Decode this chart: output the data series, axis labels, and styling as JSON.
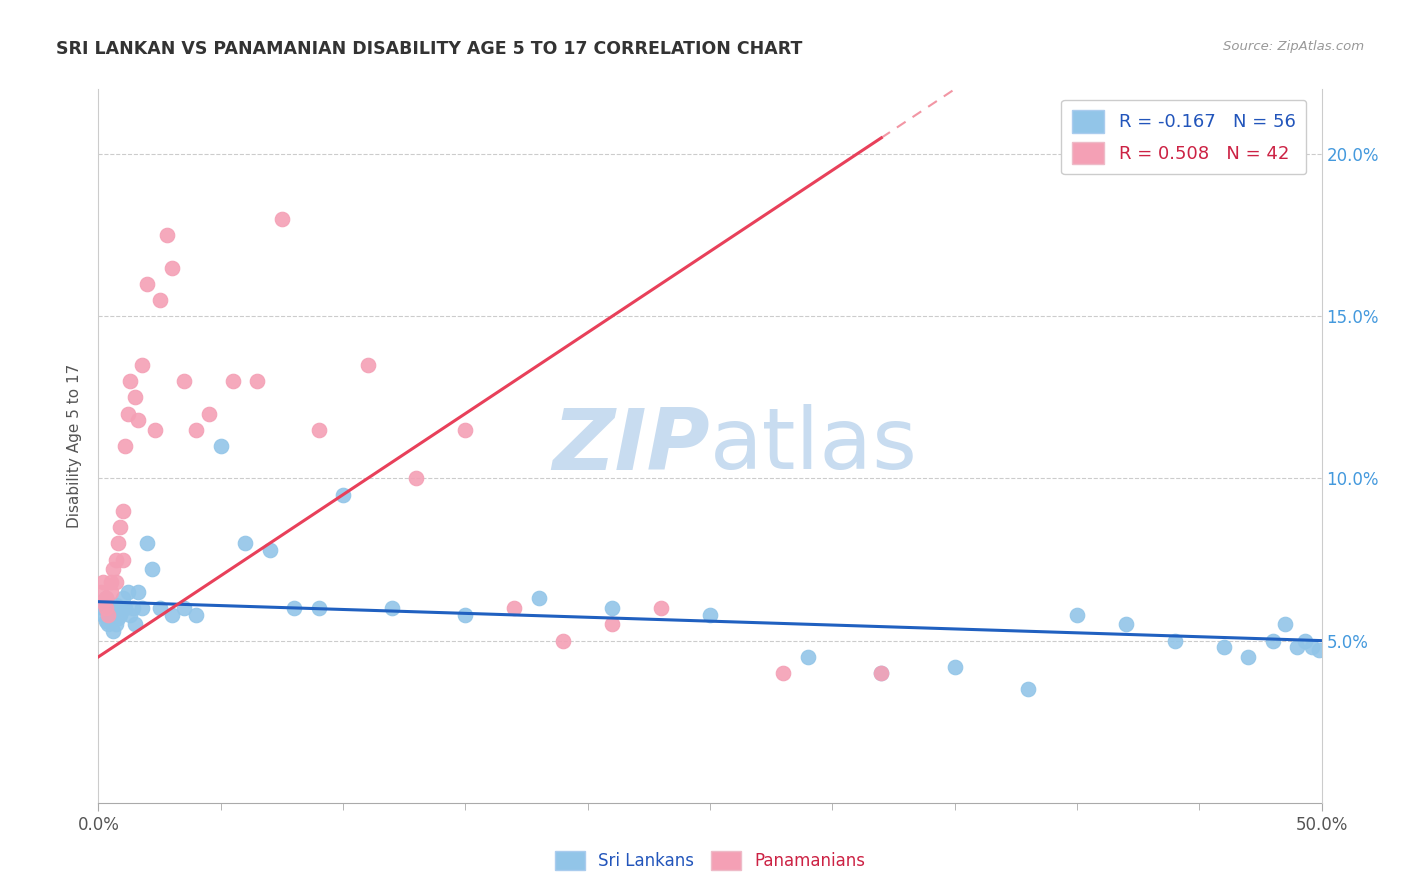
{
  "title": "SRI LANKAN VS PANAMANIAN DISABILITY AGE 5 TO 17 CORRELATION CHART",
  "source": "Source: ZipAtlas.com",
  "ylabel": "Disability Age 5 to 17",
  "xlim": [
    0.0,
    0.5
  ],
  "ylim": [
    0.0,
    0.22
  ],
  "yticks_right": [
    0.05,
    0.1,
    0.15,
    0.2
  ],
  "ytick_labels_right": [
    "5.0%",
    "10.0%",
    "15.0%",
    "20.0%"
  ],
  "sri_lankans_R": -0.167,
  "sri_lankans_N": 56,
  "panamanians_R": 0.508,
  "panamanians_N": 42,
  "sri_lankan_color": "#92C5E8",
  "panamanian_color": "#F4A0B5",
  "sri_lankan_line_color": "#2060C0",
  "panamanian_line_color": "#E8405A",
  "watermark_zip": "ZIP",
  "watermark_atlas": "atlas",
  "watermark_color": "#C8DCF0",
  "sri_lankans_x": [
    0.001,
    0.002,
    0.002,
    0.003,
    0.003,
    0.004,
    0.004,
    0.005,
    0.005,
    0.006,
    0.006,
    0.007,
    0.007,
    0.008,
    0.008,
    0.009,
    0.01,
    0.011,
    0.012,
    0.013,
    0.014,
    0.015,
    0.016,
    0.018,
    0.02,
    0.022,
    0.025,
    0.03,
    0.035,
    0.04,
    0.05,
    0.06,
    0.07,
    0.08,
    0.09,
    0.1,
    0.12,
    0.15,
    0.18,
    0.21,
    0.25,
    0.29,
    0.32,
    0.35,
    0.38,
    0.4,
    0.42,
    0.44,
    0.46,
    0.47,
    0.48,
    0.485,
    0.49,
    0.493,
    0.496,
    0.499
  ],
  "sri_lankans_y": [
    0.062,
    0.06,
    0.058,
    0.063,
    0.056,
    0.055,
    0.059,
    0.06,
    0.057,
    0.053,
    0.058,
    0.061,
    0.055,
    0.057,
    0.06,
    0.058,
    0.063,
    0.06,
    0.065,
    0.058,
    0.06,
    0.055,
    0.065,
    0.06,
    0.08,
    0.072,
    0.06,
    0.058,
    0.06,
    0.058,
    0.11,
    0.08,
    0.078,
    0.06,
    0.06,
    0.095,
    0.06,
    0.058,
    0.063,
    0.06,
    0.058,
    0.045,
    0.04,
    0.042,
    0.035,
    0.058,
    0.055,
    0.05,
    0.048,
    0.045,
    0.05,
    0.055,
    0.048,
    0.05,
    0.048,
    0.047
  ],
  "panamanians_x": [
    0.001,
    0.002,
    0.002,
    0.003,
    0.003,
    0.004,
    0.005,
    0.005,
    0.006,
    0.007,
    0.007,
    0.008,
    0.009,
    0.01,
    0.01,
    0.011,
    0.012,
    0.013,
    0.015,
    0.016,
    0.018,
    0.02,
    0.023,
    0.025,
    0.028,
    0.03,
    0.035,
    0.04,
    0.045,
    0.055,
    0.065,
    0.075,
    0.09,
    0.11,
    0.13,
    0.15,
    0.17,
    0.19,
    0.21,
    0.23,
    0.28,
    0.32
  ],
  "panamanians_y": [
    0.065,
    0.062,
    0.068,
    0.063,
    0.06,
    0.058,
    0.065,
    0.068,
    0.072,
    0.075,
    0.068,
    0.08,
    0.085,
    0.075,
    0.09,
    0.11,
    0.12,
    0.13,
    0.125,
    0.118,
    0.135,
    0.16,
    0.115,
    0.155,
    0.175,
    0.165,
    0.13,
    0.115,
    0.12,
    0.13,
    0.13,
    0.18,
    0.115,
    0.135,
    0.1,
    0.115,
    0.06,
    0.05,
    0.055,
    0.06,
    0.04,
    0.04
  ]
}
